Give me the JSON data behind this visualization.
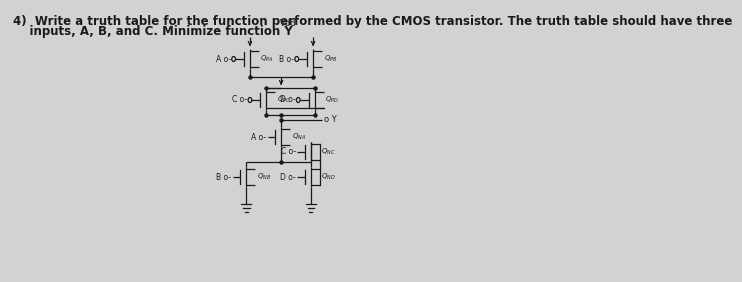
{
  "title_line1": "4)  Write a truth table for the function performed by the CMOS transistor. The truth table should have three",
  "title_line2": "    inputs, A, B, and C. Minimize function Y",
  "bg_color": "#d2d2d2",
  "line_color": "#1a1a1a",
  "text_color": "#1a1a1a",
  "title_fontsize": 8.5,
  "vdd_label": "Vdd",
  "output_label": "o Y"
}
